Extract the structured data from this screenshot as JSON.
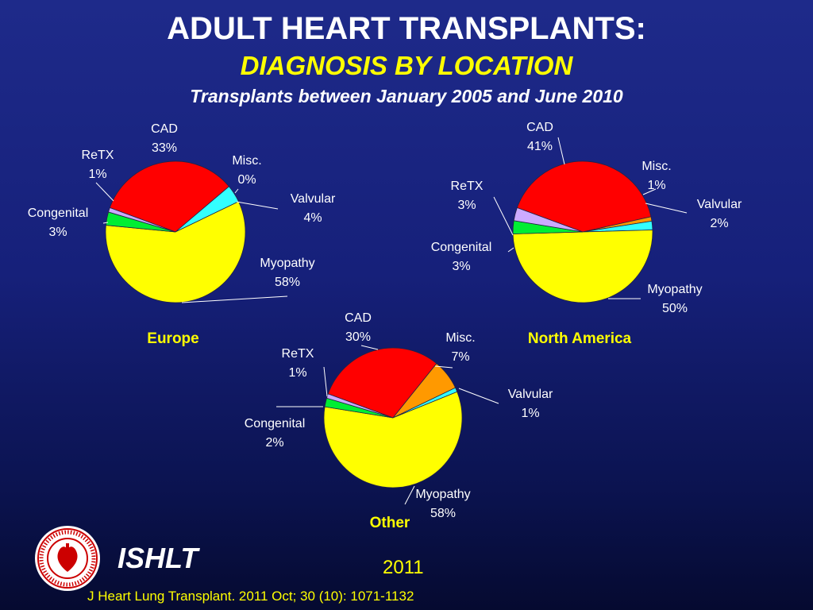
{
  "header": {
    "title": "ADULT HEART TRANSPLANTS:",
    "subtitle": "DIAGNOSIS BY LOCATION",
    "subsubtitle": "Transplants between January 2005 and June 2010"
  },
  "footer": {
    "brand": "ISHLT",
    "year": "2011",
    "citation": "J Heart Lung Transplant. 2011 Oct; 30 (10): 1071-1132",
    "logo_text": "INTERNATIONAL SOCIETY FOR HEART & LUNG TRANSPLANTATION"
  },
  "colors": {
    "background": "#16207a",
    "cad": "#ff0000",
    "misc": "#ff9900",
    "valvular": "#33ffff",
    "myopathy": "#ffff00",
    "congenital": "#00ee33",
    "retx": "#ccaaff"
  },
  "chart_data": [
    {
      "type": "pie",
      "title": "Europe",
      "categories": [
        "CAD",
        "Misc.",
        "Valvular",
        "Myopathy",
        "Congenital",
        "ReTX"
      ],
      "values": [
        33,
        0,
        4,
        58,
        3,
        1
      ],
      "labels": [
        "33%",
        "0%",
        "4%",
        "58%",
        "3%",
        "1%"
      ]
    },
    {
      "type": "pie",
      "title": "North America",
      "categories": [
        "CAD",
        "Misc.",
        "Valvular",
        "Myopathy",
        "Congenital",
        "ReTX"
      ],
      "values": [
        41,
        1,
        2,
        50,
        3,
        3
      ],
      "labels": [
        "41%",
        "1%",
        "2%",
        "50%",
        "3%",
        "3%"
      ]
    },
    {
      "type": "pie",
      "title": "Other",
      "categories": [
        "CAD",
        "Misc.",
        "Valvular",
        "Myopathy",
        "Congenital",
        "ReTX"
      ],
      "values": [
        30,
        7,
        1,
        58,
        2,
        1
      ],
      "labels": [
        "30%",
        "7%",
        "1%",
        "58%",
        "2%",
        "1%"
      ]
    }
  ]
}
